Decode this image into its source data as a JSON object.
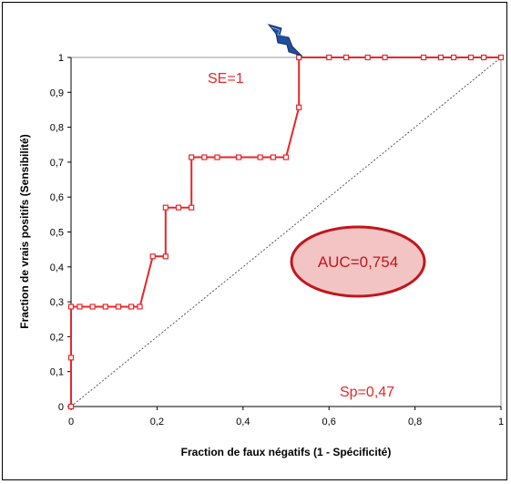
{
  "chart_data": {
    "type": "line",
    "xlabel": "Fraction de faux négatifs (1 - Spécificité)",
    "ylabel": "Fraction de vrais positifs (Sensibilité)",
    "xlim": [
      0,
      1
    ],
    "ylim": [
      0,
      1
    ],
    "x_ticks": [
      "0",
      "0,2",
      "0,4",
      "0,6",
      "0,8",
      "1"
    ],
    "y_ticks": [
      "0",
      "0,1",
      "0,2",
      "0,3",
      "0,4",
      "0,5",
      "0,6",
      "0,7",
      "0,8",
      "0,9",
      "1"
    ],
    "grid": false,
    "series": [
      {
        "color": "#e8262a",
        "marker": "square",
        "x": [
          0,
          0,
          0,
          0.02,
          0.05,
          0.08,
          0.11,
          0.14,
          0.16,
          0.19,
          0.22,
          0.22,
          0.25,
          0.28,
          0.28,
          0.31,
          0.34,
          0.39,
          0.44,
          0.47,
          0.5,
          0.53,
          0.53,
          0.6,
          0.64,
          0.69,
          0.73,
          0.82,
          0.86,
          0.89,
          0.93,
          0.96,
          1.0
        ],
        "y": [
          0,
          0.14,
          0.286,
          0.286,
          0.286,
          0.286,
          0.286,
          0.286,
          0.286,
          0.43,
          0.43,
          0.57,
          0.57,
          0.57,
          0.714,
          0.714,
          0.714,
          0.714,
          0.714,
          0.714,
          0.714,
          0.857,
          1.0,
          1.0,
          1.0,
          1.0,
          1.0,
          1.0,
          1.0,
          1.0,
          1.0,
          1.0,
          1.0
        ]
      },
      {
        "color": "#555555",
        "style": "dotted",
        "x": [
          0,
          1
        ],
        "y": [
          0,
          1
        ]
      }
    ],
    "annotations": [
      {
        "text": "SE=1",
        "color": "#e8262a"
      },
      {
        "text": "Sp=0,47",
        "color": "#e8262a"
      },
      {
        "text": "AUC=0,754",
        "color": "#c0171c",
        "fill": "#f3c4c4",
        "shape": "ellipse"
      }
    ],
    "pointer_icon": "lightning-bolt-icon"
  }
}
